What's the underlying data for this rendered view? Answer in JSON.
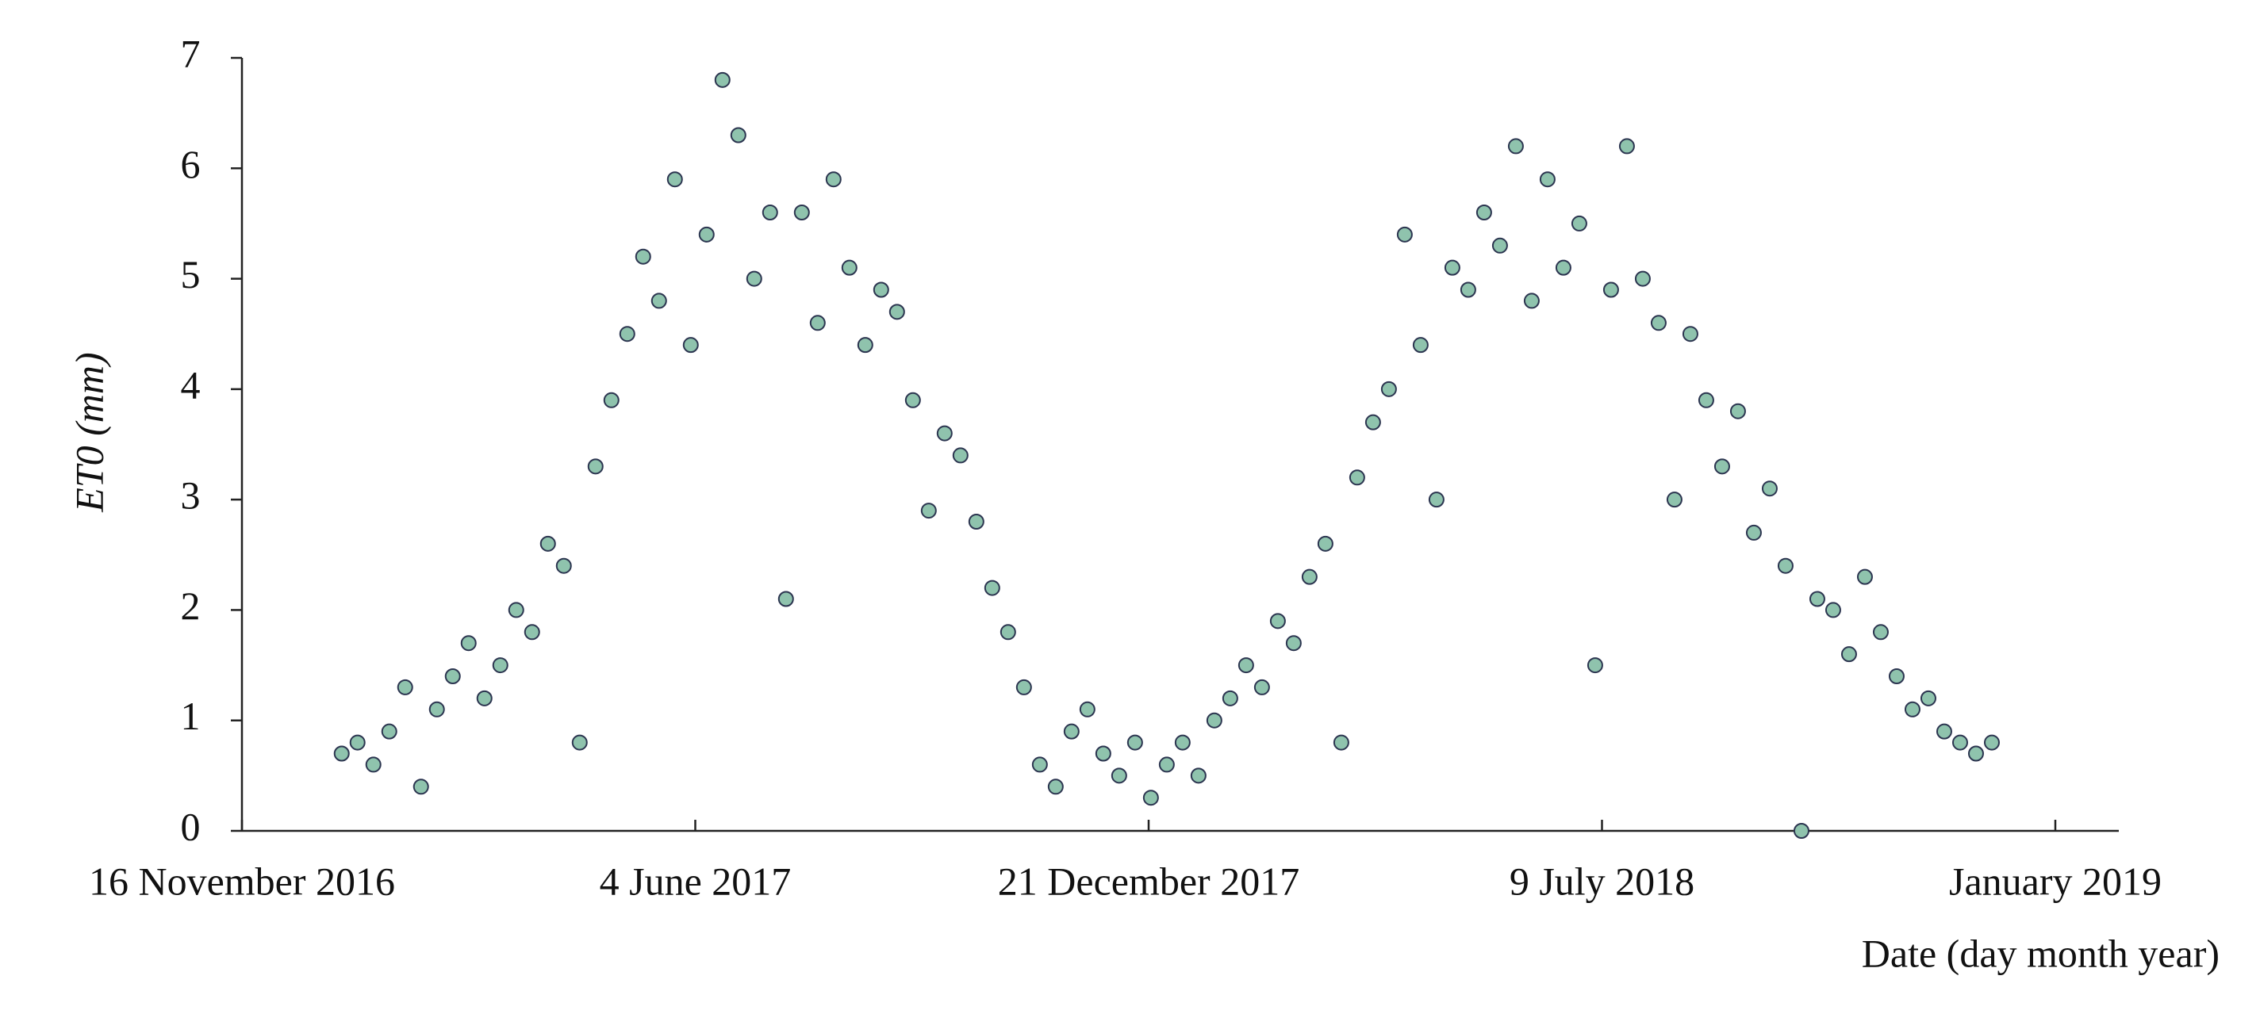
{
  "chart_data": {
    "type": "scatter",
    "x_label": "Date (day month year)",
    "y_label": "ET0 (mm)",
    "color": "#8fc3ad",
    "edge_color": "#2c3550",
    "xlim": [
      "2016-11-16",
      "2019-02-22"
    ],
    "xticks": [
      {
        "value": "2016-11-16",
        "label": "16 November 2016"
      },
      {
        "value": "2017-06-04",
        "label": "4 June 2017"
      },
      {
        "value": "2017-12-21",
        "label": "21 December 2017"
      },
      {
        "value": "2018-07-09",
        "label": "9 July 2018"
      },
      {
        "value": "2019-01-25",
        "label": "January 2019"
      }
    ],
    "ylim": [
      0,
      7
    ],
    "yticks": [
      0,
      1,
      2,
      3,
      4,
      5,
      6,
      7
    ],
    "x": [
      "2016-12-30",
      "2017-01-06",
      "2017-01-13",
      "2017-01-20",
      "2017-01-27",
      "2017-02-03",
      "2017-02-10",
      "2017-02-17",
      "2017-02-24",
      "2017-03-03",
      "2017-03-10",
      "2017-03-17",
      "2017-03-24",
      "2017-03-31",
      "2017-04-07",
      "2017-04-14",
      "2017-04-21",
      "2017-04-28",
      "2017-05-05",
      "2017-05-12",
      "2017-05-19",
      "2017-05-26",
      "2017-06-02",
      "2017-06-09",
      "2017-06-16",
      "2017-06-23",
      "2017-06-30",
      "2017-07-07",
      "2017-07-14",
      "2017-07-21",
      "2017-07-28",
      "2017-08-04",
      "2017-08-11",
      "2017-08-18",
      "2017-08-25",
      "2017-09-01",
      "2017-09-08",
      "2017-09-15",
      "2017-09-22",
      "2017-09-29",
      "2017-10-06",
      "2017-10-13",
      "2017-10-20",
      "2017-10-27",
      "2017-11-03",
      "2017-11-10",
      "2017-11-17",
      "2017-11-24",
      "2017-12-01",
      "2017-12-08",
      "2017-12-15",
      "2017-12-22",
      "2017-12-29",
      "2018-01-05",
      "2018-01-12",
      "2018-01-19",
      "2018-01-26",
      "2018-02-02",
      "2018-02-09",
      "2018-02-16",
      "2018-02-23",
      "2018-03-02",
      "2018-03-09",
      "2018-03-16",
      "2018-03-23",
      "2018-03-30",
      "2018-04-06",
      "2018-04-13",
      "2018-04-20",
      "2018-04-27",
      "2018-05-04",
      "2018-05-11",
      "2018-05-18",
      "2018-05-25",
      "2018-06-01",
      "2018-06-08",
      "2018-06-15",
      "2018-06-22",
      "2018-06-29",
      "2018-07-06",
      "2018-07-13",
      "2018-07-20",
      "2018-07-27",
      "2018-08-03",
      "2018-08-10",
      "2018-08-17",
      "2018-08-24",
      "2018-08-31",
      "2018-09-07",
      "2018-09-14",
      "2018-09-21",
      "2018-09-28",
      "2018-10-05",
      "2018-10-12",
      "2018-10-19",
      "2018-10-26",
      "2018-11-02",
      "2018-11-09",
      "2018-11-16",
      "2018-11-23",
      "2018-11-30",
      "2018-12-07",
      "2018-12-14",
      "2018-12-21",
      "2018-12-28"
    ],
    "values": [
      0.7,
      0.8,
      0.6,
      0.9,
      1.3,
      0.4,
      1.1,
      1.4,
      1.7,
      1.2,
      1.5,
      2.0,
      1.8,
      2.6,
      2.4,
      0.8,
      3.3,
      3.9,
      4.5,
      5.2,
      4.8,
      5.9,
      4.4,
      5.4,
      6.8,
      6.3,
      5.0,
      5.6,
      2.1,
      5.6,
      4.6,
      5.9,
      5.1,
      4.4,
      4.9,
      4.7,
      3.9,
      2.9,
      3.6,
      3.4,
      2.8,
      2.2,
      1.8,
      1.3,
      0.6,
      0.4,
      0.9,
      1.1,
      0.7,
      0.5,
      0.8,
      0.3,
      0.6,
      0.8,
      0.5,
      1.0,
      1.2,
      1.5,
      1.3,
      1.9,
      1.7,
      2.3,
      2.6,
      0.8,
      3.2,
      3.7,
      4.0,
      5.4,
      4.4,
      3.0,
      5.1,
      4.9,
      5.6,
      5.3,
      6.2,
      4.8,
      5.9,
      5.1,
      5.5,
      1.5,
      4.9,
      6.2,
      5.0,
      4.6,
      3.0,
      4.5,
      3.9,
      3.3,
      3.8,
      2.7,
      3.1,
      2.4,
      0.0,
      2.1,
      2.0,
      1.6,
      2.3,
      1.8,
      1.4,
      1.1,
      1.2,
      0.9,
      0.8,
      0.7,
      0.8
    ]
  }
}
